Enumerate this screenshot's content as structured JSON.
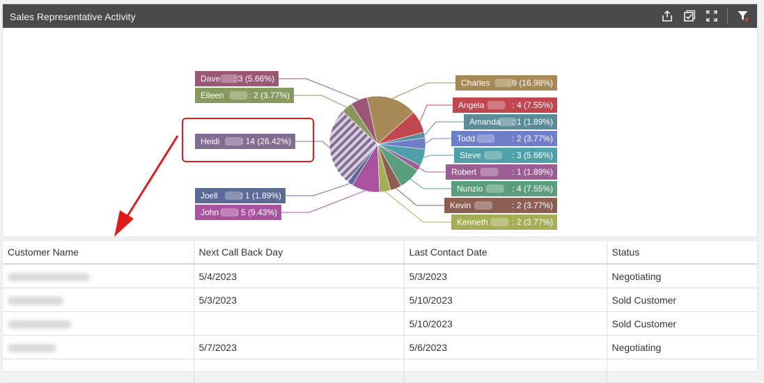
{
  "header": {
    "title": "Sales Representative Activity",
    "icons": [
      "export-icon",
      "checklist-icon",
      "expand-icon",
      "filter-clear-icon"
    ]
  },
  "chart_data": {
    "type": "pie",
    "slices": [
      {
        "name": "Charles",
        "count": 9,
        "percent": "16.98%",
        "label": ": 9 (16.98%)",
        "color": "#a78957"
      },
      {
        "name": "Angela",
        "count": 4,
        "percent": "7.55%",
        "label": ": 4 (7.55%)",
        "color": "#c0464f"
      },
      {
        "name": "Amanda",
        "count": 1,
        "percent": "1.89%",
        "label": ": 1 (1.89%)",
        "color": "#5c8c9a"
      },
      {
        "name": "Todd",
        "count": 2,
        "percent": "3.77%",
        "label": ": 2 (3.77%)",
        "color": "#6e7ec8"
      },
      {
        "name": "Steve",
        "count": 3,
        "percent": "5.66%",
        "label": ": 3 (5.66%)",
        "color": "#4fa0a8"
      },
      {
        "name": "Robert",
        "count": 1,
        "percent": "1.89%",
        "label": ": 1 (1.89%)",
        "color": "#9b5e94"
      },
      {
        "name": "Nunzio",
        "count": 4,
        "percent": "7.55%",
        "label": ": 4 (7.55%)",
        "color": "#5a9e80"
      },
      {
        "name": "Kevin",
        "count": 2,
        "percent": "3.77%",
        "label": ": 2 (3.77%)",
        "color": "#8c5f52"
      },
      {
        "name": "Kenneth",
        "count": 2,
        "percent": "3.77%",
        "label": ": 2 (3.77%)",
        "color": "#a5ae55"
      },
      {
        "name": "John",
        "count": 5,
        "percent": "9.43%",
        "label": ": 5 (9.43%)",
        "color": "#a9539e"
      },
      {
        "name": "Joell",
        "count": 1,
        "percent": "1.89%",
        "label": ": 1 (1.89%)",
        "color": "#5c6a97"
      },
      {
        "name": "Heidi",
        "count": 14,
        "percent": "26.42%",
        "label": ": 14 (26.42%)",
        "color": "#836e93",
        "hatched": true
      },
      {
        "name": "Eileen",
        "count": 2,
        "percent": "3.77%",
        "label": ": 2 (3.77%)",
        "color": "#88995e"
      },
      {
        "name": "Dave",
        "count": 3,
        "percent": "5.66%",
        "label": ": 3 (5.66%)",
        "color": "#9a5875"
      }
    ],
    "legend": "callout labels around pie"
  },
  "table": {
    "columns": [
      "Customer Name",
      "Next Call Back Day",
      "Last Contact Date",
      "Status"
    ],
    "rows": [
      {
        "next_call": "5/4/2023",
        "last_contact": "5/3/2023",
        "status": "Negotiating"
      },
      {
        "next_call": "5/3/2023",
        "last_contact": "5/10/2023",
        "status": "Sold Customer"
      },
      {
        "next_call": "",
        "last_contact": "5/10/2023",
        "status": "Sold Customer"
      },
      {
        "next_call": "5/7/2023",
        "last_contact": "5/6/2023",
        "status": "Negotiating"
      },
      {
        "next_call": "",
        "last_contact": "",
        "status": ""
      }
    ]
  },
  "annotation": {
    "color": "#e01b1b"
  }
}
